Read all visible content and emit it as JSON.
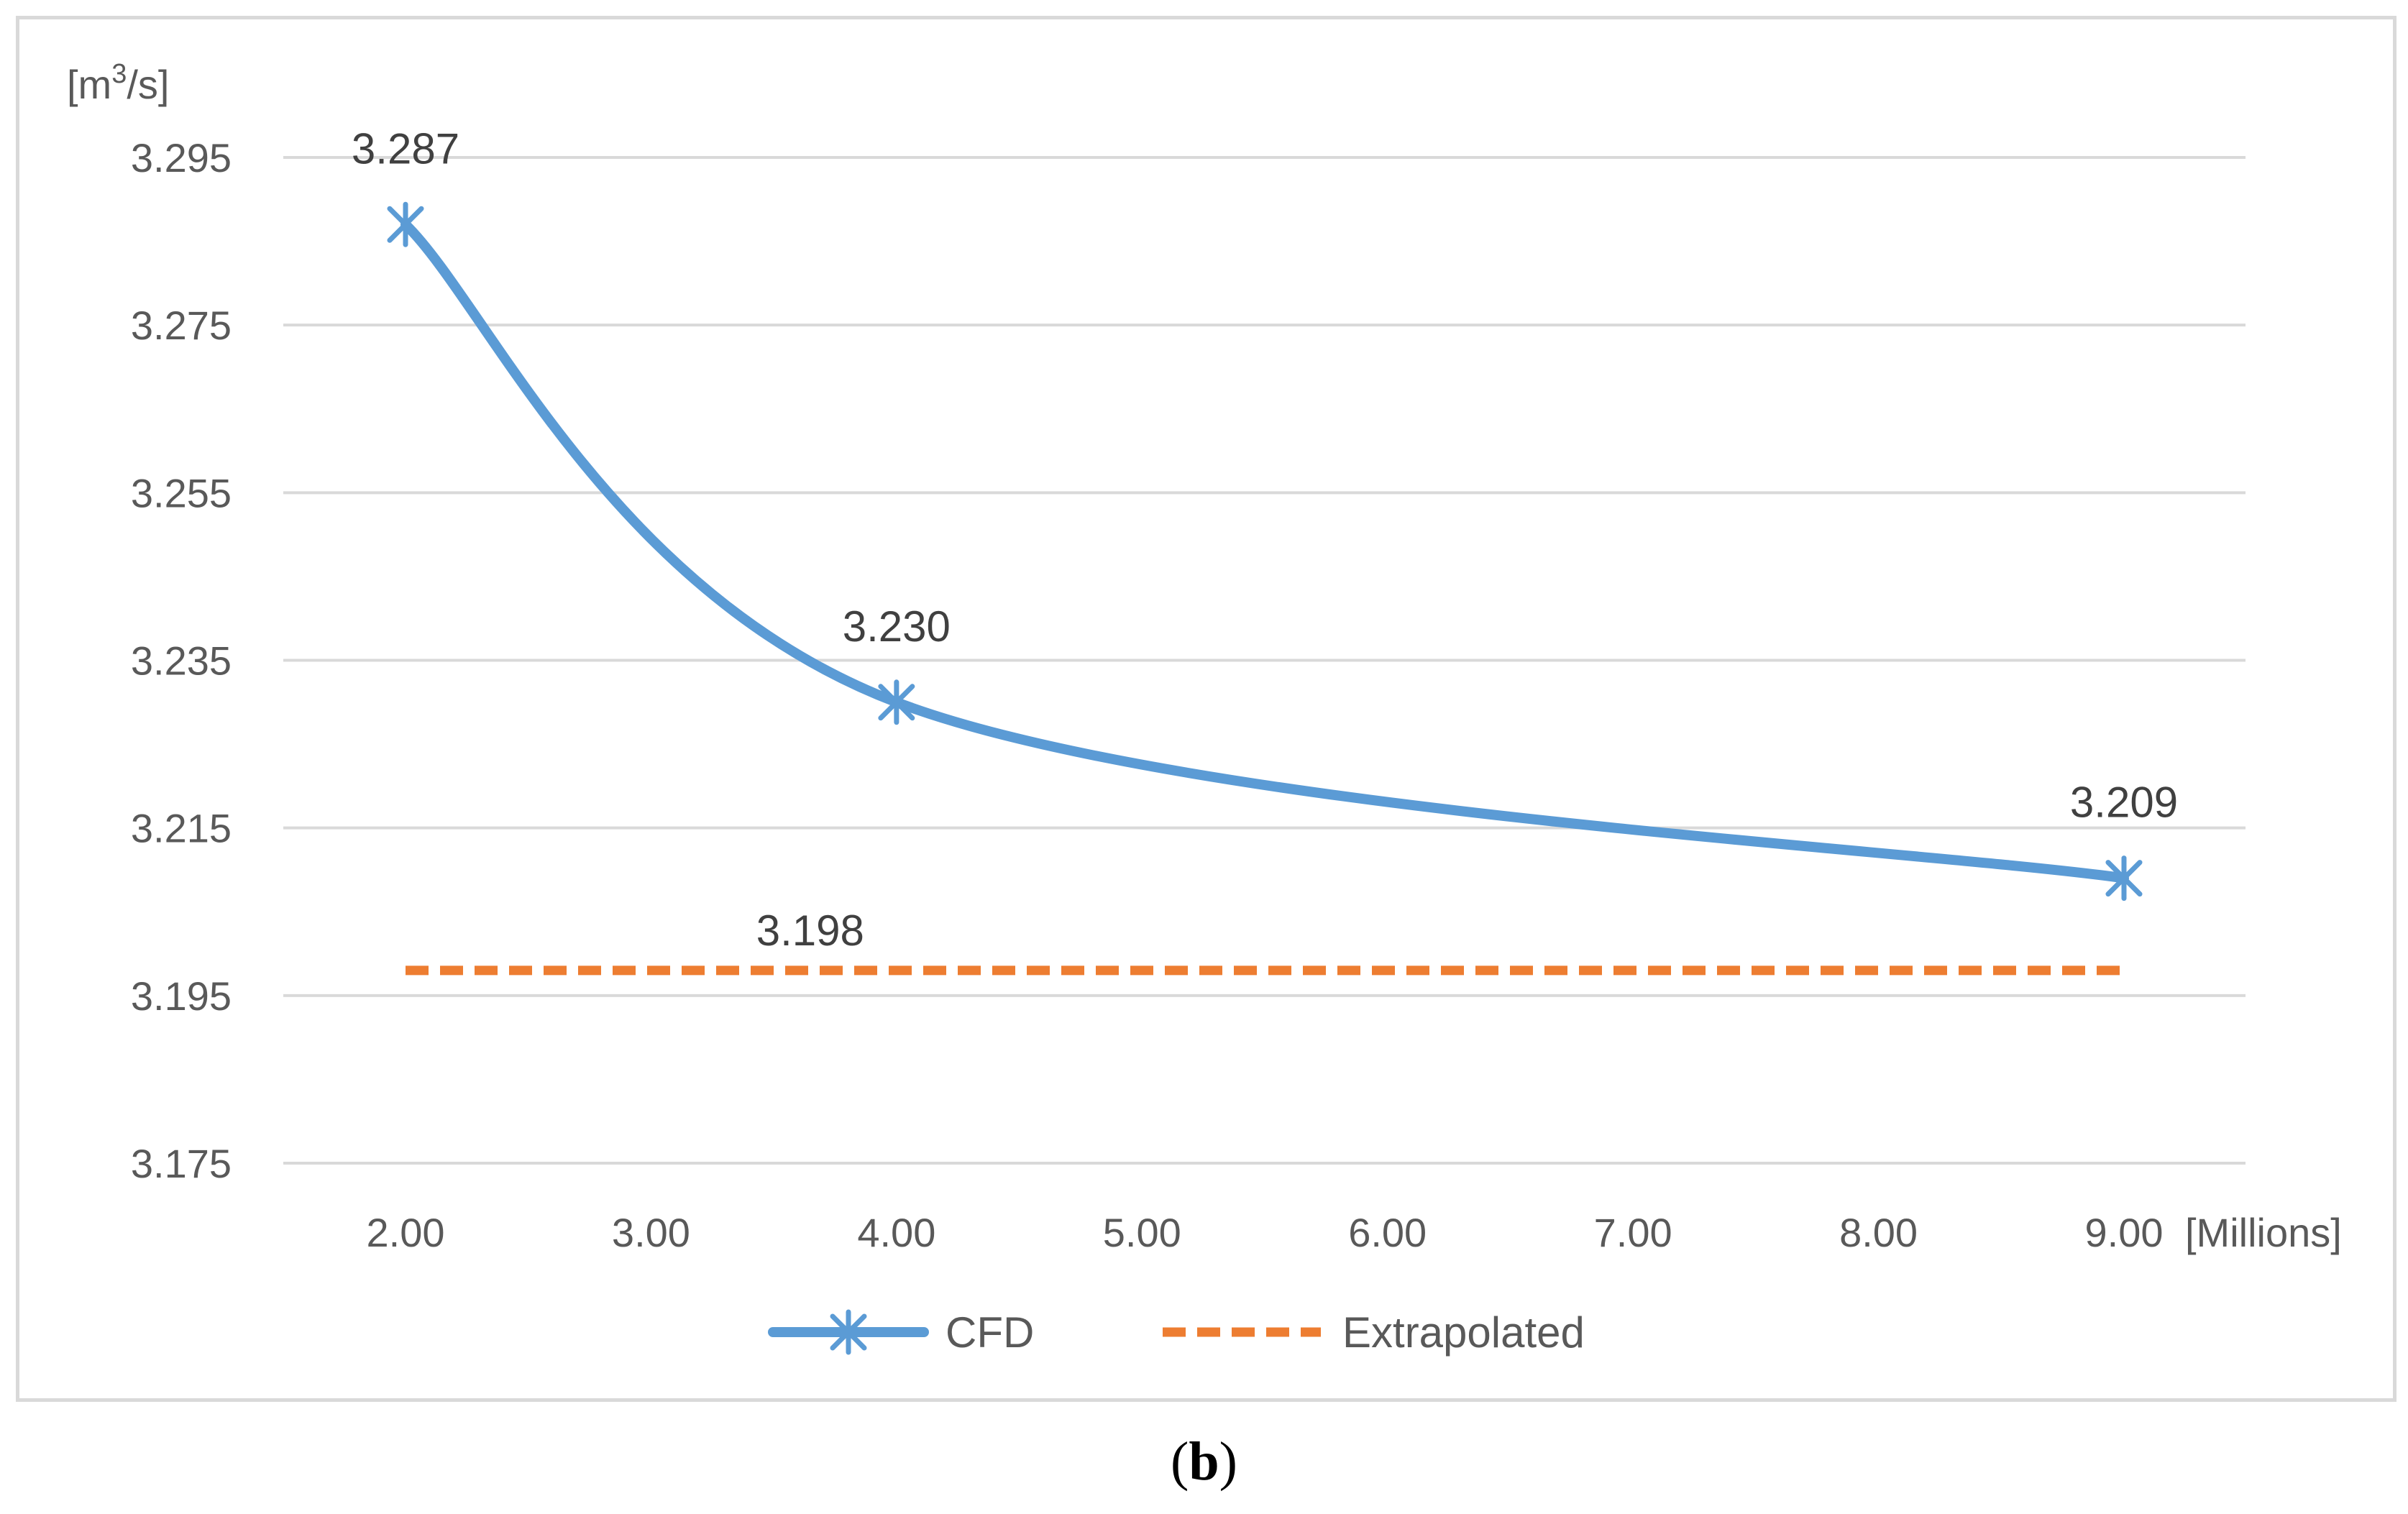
{
  "chart_data": {
    "type": "line",
    "title": "",
    "ylabel": "[m³/s]",
    "ylabel_base": "[m",
    "ylabel_sup": "3",
    "ylabel_tail": "/s]",
    "xlabel": "[Millions]",
    "x_ticks": [
      "2.00",
      "3.00",
      "4.00",
      "5.00",
      "6.00",
      "7.00",
      "8.00",
      "9.00"
    ],
    "x_tick_values": [
      2,
      3,
      4,
      5,
      6,
      7,
      8,
      9
    ],
    "y_ticks": [
      "3.295",
      "3.275",
      "3.255",
      "3.235",
      "3.215",
      "3.195",
      "3.175"
    ],
    "y_tick_values": [
      3.295,
      3.275,
      3.255,
      3.235,
      3.215,
      3.195,
      3.175
    ],
    "xlim": [
      1.5,
      9.5
    ],
    "ylim": [
      3.175,
      3.3
    ],
    "grid": true,
    "legend_position": "bottom",
    "series": [
      {
        "name": "CFD",
        "color": "#5b9bd5",
        "style": "solid-smooth",
        "marker": "asterisk",
        "x": [
          2,
          4,
          9
        ],
        "y": [
          3.287,
          3.23,
          3.209
        ],
        "labels": [
          "3.287",
          "3.230",
          "3.209"
        ]
      },
      {
        "name": "Extrapolated",
        "color": "#ed7d31",
        "style": "dashed",
        "x": [
          2,
          9
        ],
        "y": [
          3.198,
          3.198
        ],
        "label": "3.198",
        "label_x": 4
      }
    ]
  },
  "caption": {
    "open": "(",
    "letter": "b",
    "close": ")"
  }
}
